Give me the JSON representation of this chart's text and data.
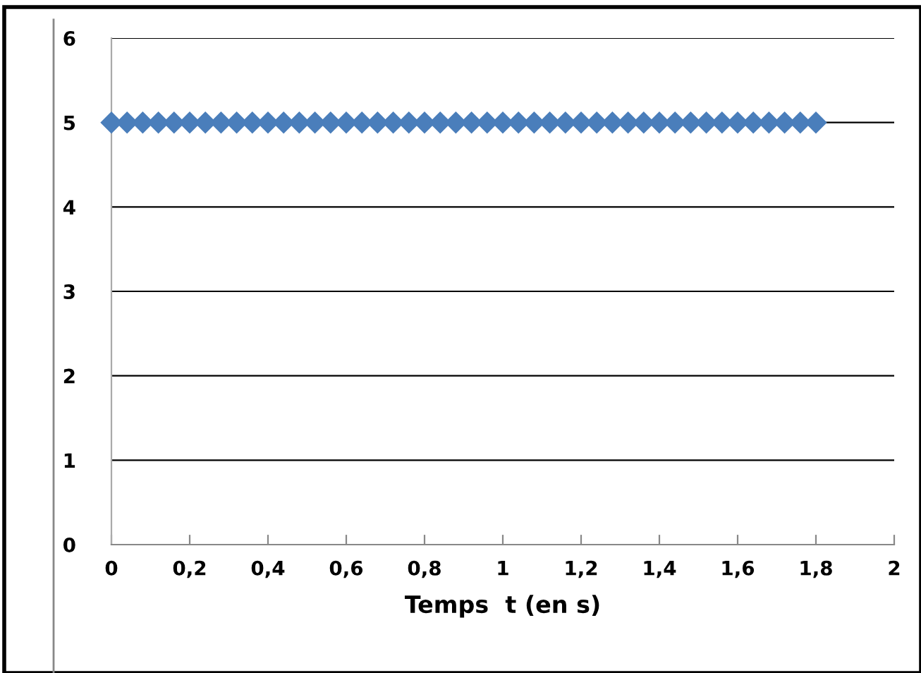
{
  "chart_data": {
    "type": "scatter",
    "xlabel": "Temps  t (en s)",
    "x": [
      0,
      0.04,
      0.08,
      0.12,
      0.16,
      0.2,
      0.24,
      0.28,
      0.32,
      0.36,
      0.4,
      0.44,
      0.48,
      0.52,
      0.56,
      0.6,
      0.64,
      0.68,
      0.72,
      0.76,
      0.8,
      0.84,
      0.88,
      0.92,
      0.96,
      1,
      1.04,
      1.08,
      1.12,
      1.16,
      1.2,
      1.24,
      1.28,
      1.32,
      1.36,
      1.4,
      1.44,
      1.48,
      1.52,
      1.56,
      1.6,
      1.64,
      1.68,
      1.72,
      1.76,
      1.8
    ],
    "series": [
      {
        "color": "#4a7ebb",
        "values": [
          5,
          5,
          5,
          5,
          5,
          5,
          5,
          5,
          5,
          5,
          5,
          5,
          5,
          5,
          5,
          5,
          5,
          5,
          5,
          5,
          5,
          5,
          5,
          5,
          5,
          5,
          5,
          5,
          5,
          5,
          5,
          5,
          5,
          5,
          5,
          5,
          5,
          5,
          5,
          5,
          5,
          5,
          5,
          5,
          5,
          5
        ]
      }
    ],
    "xlim": [
      0,
      2
    ],
    "xticks": [
      0,
      {
        "value": 0.2,
        "label": "0,2"
      },
      {
        "value": 0.4,
        "label": "0,4"
      },
      {
        "value": 0.6,
        "label": "0,6"
      },
      {
        "value": 0.8,
        "label": "0,8"
      },
      1,
      {
        "value": 1.2,
        "label": "1,2"
      },
      {
        "value": 1.4,
        "label": "1,4"
      },
      {
        "value": 1.6,
        "label": "1,6"
      },
      {
        "value": 1.8,
        "label": "1,8"
      },
      2
    ],
    "ylim": [
      0,
      6
    ],
    "yticks": [
      0,
      1,
      2,
      3,
      4,
      5,
      6
    ],
    "grid": "y",
    "marker": "diamond"
  }
}
